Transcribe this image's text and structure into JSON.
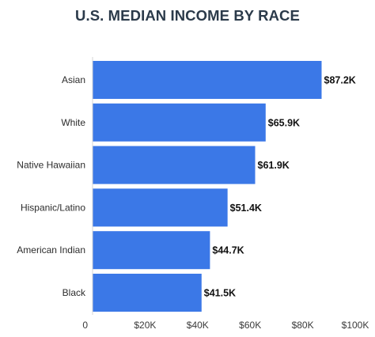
{
  "chart_data": {
    "type": "bar",
    "orientation": "horizontal",
    "title": "U.S. MEDIAN INCOME BY RACE",
    "categories": [
      "Asian",
      "White",
      "Native Hawaiian",
      "Hispanic/Latino",
      "American Indian",
      "Black"
    ],
    "values": [
      87.2,
      65.9,
      61.9,
      51.4,
      44.7,
      41.5
    ],
    "value_labels": [
      "$87.2K",
      "$65.9K",
      "$61.9K",
      "$51.4K",
      "$44.7K",
      "$41.5K"
    ],
    "unit": "$K",
    "xlim": [
      0,
      100
    ],
    "x_ticks": [
      0,
      20,
      40,
      60,
      80,
      100
    ],
    "x_tick_labels": [
      "0",
      "$20K",
      "$40K",
      "$60K",
      "$80K",
      "$100K"
    ],
    "xlabel": "",
    "ylabel": "",
    "grid": false,
    "bar_color": "#3b78e7"
  }
}
